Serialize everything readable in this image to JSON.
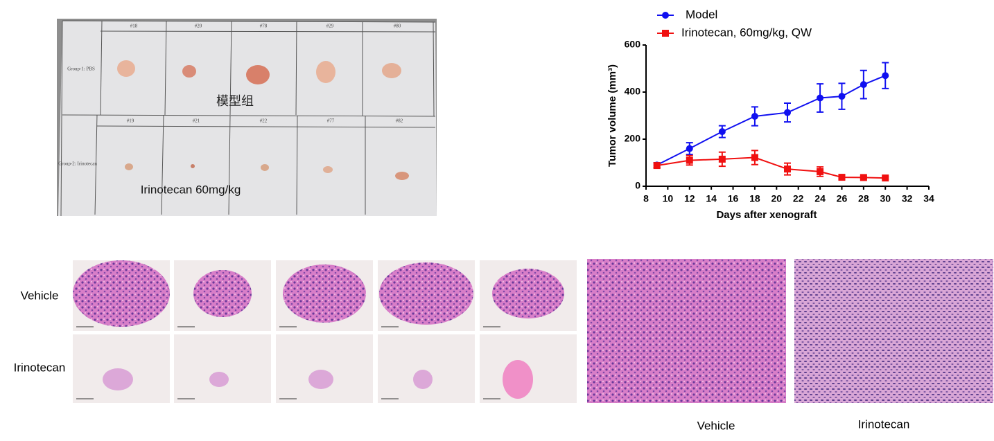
{
  "chart_data": {
    "type": "line",
    "x": [
      9,
      12,
      15,
      18,
      21,
      24,
      26,
      28,
      30
    ],
    "series": [
      {
        "name": "Model",
        "color": "#1010f0",
        "marker": "circle",
        "values": [
          90,
          160,
          232,
          297,
          313,
          375,
          382,
          432,
          470
        ],
        "errors": [
          10,
          25,
          25,
          40,
          40,
          60,
          55,
          60,
          55
        ]
      },
      {
        "name": "Irinotecan, 60mg/kg, QW",
        "color": "#f01010",
        "marker": "square",
        "values": [
          88,
          110,
          115,
          122,
          73,
          62,
          38,
          37,
          35
        ],
        "errors": [
          10,
          20,
          30,
          30,
          25,
          20,
          8,
          5,
          5
        ]
      }
    ],
    "xlim": [
      8,
      34
    ],
    "xticks": [
      8,
      10,
      12,
      14,
      16,
      18,
      20,
      22,
      24,
      26,
      28,
      30,
      32,
      34
    ],
    "ylim": [
      0,
      600
    ],
    "yticks": [
      0,
      200,
      400,
      600
    ],
    "xlabel": "Days after xenograft",
    "ylabel": "Tumor volume (mm³)",
    "legend": "top-left"
  },
  "photo": {
    "ids_top": [
      "#18",
      "#20",
      "#78",
      "#29",
      "#80"
    ],
    "ids_bottom": [
      "#19",
      "#21",
      "#22",
      "#77",
      "#82"
    ],
    "group1": "Group-1: PBS",
    "group2": "Group-2: Irinotecan",
    "label_top": "模型组",
    "label_bottom": "Irinotecan 60mg/kg"
  },
  "histology": {
    "row1": "Vehicle",
    "row2": "Irinotecan",
    "zoom1": "Vehicle",
    "zoom2": "Irinotecan"
  }
}
